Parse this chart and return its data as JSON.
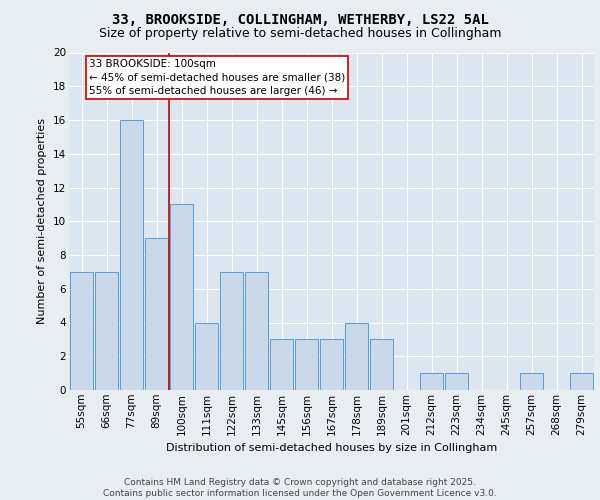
{
  "title1": "33, BROOKSIDE, COLLINGHAM, WETHERBY, LS22 5AL",
  "title2": "Size of property relative to semi-detached houses in Collingham",
  "xlabel": "Distribution of semi-detached houses by size in Collingham",
  "ylabel": "Number of semi-detached properties",
  "categories": [
    "55sqm",
    "66sqm",
    "77sqm",
    "89sqm",
    "100sqm",
    "111sqm",
    "122sqm",
    "133sqm",
    "145sqm",
    "156sqm",
    "167sqm",
    "178sqm",
    "189sqm",
    "201sqm",
    "212sqm",
    "223sqm",
    "234sqm",
    "245sqm",
    "257sqm",
    "268sqm",
    "279sqm"
  ],
  "values": [
    7,
    7,
    16,
    9,
    11,
    4,
    7,
    7,
    3,
    3,
    3,
    4,
    3,
    0,
    1,
    1,
    0,
    0,
    1,
    0,
    1
  ],
  "bar_color": "#c9d9ea",
  "bar_edge_color": "#5b9bd5",
  "highlight_index": 4,
  "red_line_color": "#cc0000",
  "annotation_text": "33 BROOKSIDE: 100sqm\n← 45% of semi-detached houses are smaller (38)\n55% of semi-detached houses are larger (46) →",
  "annotation_box_facecolor": "#ffffff",
  "annotation_box_edgecolor": "#cc0000",
  "ylim": [
    0,
    20
  ],
  "yticks": [
    0,
    2,
    4,
    6,
    8,
    10,
    12,
    14,
    16,
    18,
    20
  ],
  "bg_color": "#e8edf2",
  "plot_bg_color": "#dce6f0",
  "grid_color": "#ffffff",
  "footer_text": "Contains HM Land Registry data © Crown copyright and database right 2025.\nContains public sector information licensed under the Open Government Licence v3.0.",
  "title1_fontsize": 10,
  "title2_fontsize": 9,
  "axis_label_fontsize": 8,
  "tick_fontsize": 7.5,
  "annotation_fontsize": 7.5,
  "footer_fontsize": 6.5
}
